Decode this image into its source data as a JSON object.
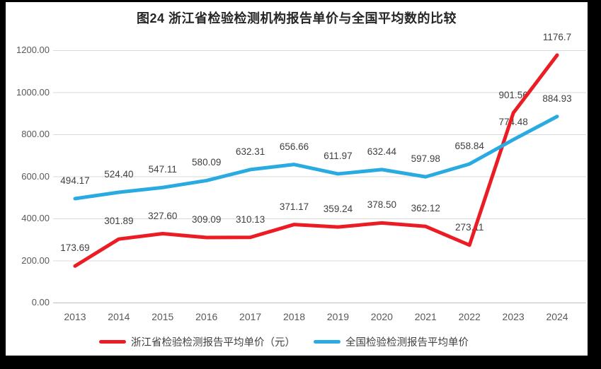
{
  "title": "图24  浙江省检验检测机构报告单价与全国平均数的比较",
  "chart_data": {
    "type": "line",
    "categories": [
      "2013",
      "2014",
      "2015",
      "2016",
      "2017",
      "2018",
      "2019",
      "2020",
      "2021",
      "2022",
      "2023",
      "2024"
    ],
    "series": [
      {
        "name": "浙江省检验检测报告平均单价（元）",
        "color": "#ec1c24",
        "values": [
          173.69,
          301.89,
          327.6,
          309.09,
          310.13,
          371.17,
          359.24,
          378.5,
          362.12,
          273.11,
          901.56,
          1176.7
        ],
        "labels": [
          "173.69",
          "301.89",
          "327.60",
          "309.09",
          "310.13",
          "371.17",
          "359.24",
          "378.50",
          "362.12",
          "273.11",
          "901.56",
          "1176.7"
        ]
      },
      {
        "name": "全国检验检测报告平均单价",
        "color": "#29abe2",
        "values": [
          494.17,
          524.4,
          547.11,
          580.09,
          632.31,
          656.66,
          611.97,
          632.44,
          597.98,
          658.84,
          774.48,
          884.93
        ],
        "labels": [
          "494.17",
          "524.40",
          "547.11",
          "580.09",
          "632.31",
          "656.66",
          "611.97",
          "632.44",
          "597.98",
          "658.84",
          "774.48",
          "884.93"
        ]
      }
    ],
    "ylim": [
      0,
      1200
    ],
    "ytick_step": 200,
    "ytick_labels": [
      "0.00",
      "200.00",
      "400.00",
      "600.00",
      "800.00",
      "1000.00",
      "1200.00"
    ],
    "grid": "horizontal-only",
    "legend_position": "bottom",
    "colors": {
      "gridline": "#d9d9d9",
      "axis_line": "#c0c0c0",
      "axis_text": "#595959",
      "data_label_text": "#404040",
      "title_text": "#262626",
      "frame_border": "#000000",
      "plot_background": "#ffffff"
    }
  }
}
